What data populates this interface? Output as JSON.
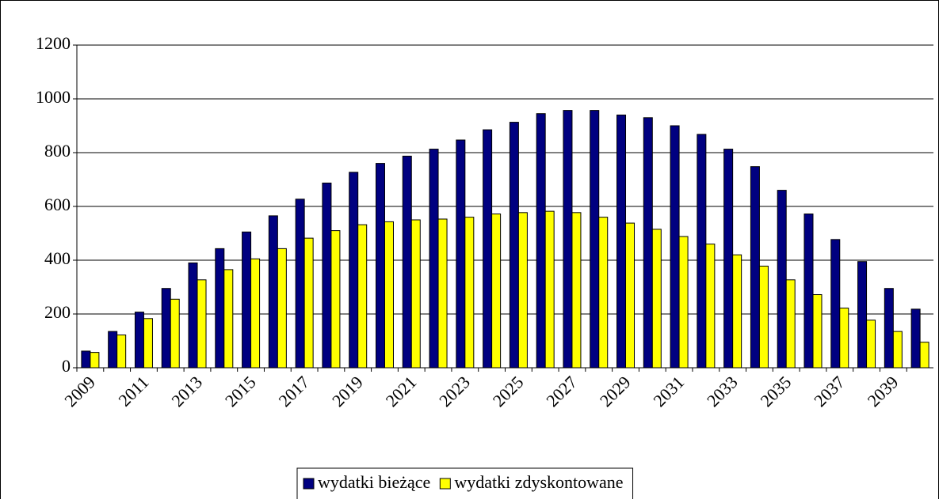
{
  "chart_data": {
    "type": "bar",
    "categories": [
      "2009",
      null,
      "2011",
      null,
      "2013",
      null,
      "2015",
      null,
      "2017",
      null,
      "2019",
      null,
      "2021",
      null,
      "2023",
      null,
      "2025",
      null,
      "2027",
      null,
      "2029",
      null,
      "2031",
      null,
      "2033",
      null,
      "2035",
      null,
      "2037",
      null,
      "2039",
      null
    ],
    "series": [
      {
        "name": "wydatki bieżące",
        "color": "#000080",
        "values": [
          62,
          135,
          207,
          295,
          390,
          443,
          505,
          565,
          627,
          687,
          727,
          760,
          787,
          813,
          847,
          885,
          913,
          945,
          957,
          957,
          940,
          930,
          900,
          868,
          813,
          748,
          660,
          572,
          477,
          395,
          295,
          218
        ]
      },
      {
        "name": "wydatki zdyskontowane",
        "color": "#ffff00",
        "values": [
          57,
          122,
          183,
          255,
          327,
          365,
          405,
          443,
          482,
          510,
          532,
          543,
          550,
          553,
          560,
          572,
          577,
          582,
          577,
          560,
          538,
          515,
          488,
          460,
          420,
          378,
          327,
          272,
          222,
          177,
          135,
          95
        ]
      }
    ],
    "ylim": [
      0,
      1200
    ],
    "yticks": [
      0,
      200,
      400,
      600,
      800,
      1000,
      1200
    ],
    "grid": true,
    "legend": "bottom"
  }
}
